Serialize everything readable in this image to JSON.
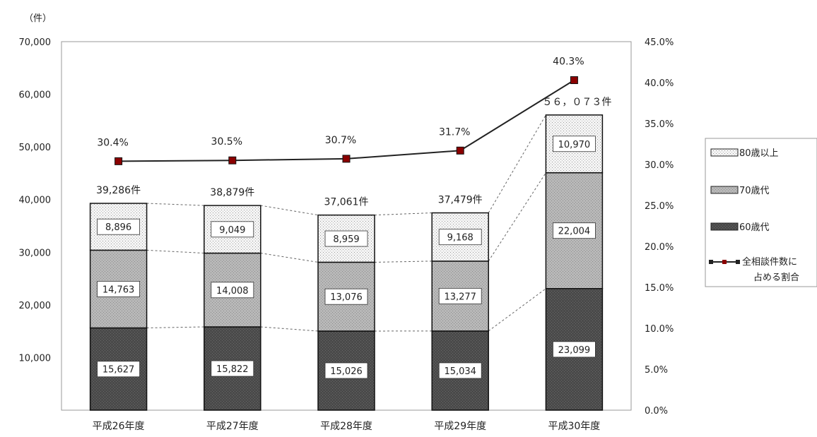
{
  "chart_data": {
    "type": "bar",
    "stacked": true,
    "unit_label": "（件）",
    "categories": [
      "平成26年度",
      "平成27年度",
      "平成28年度",
      "平成29年度",
      "平成30年度"
    ],
    "series": [
      {
        "name": "60歳代",
        "color": "#4a4a4a",
        "values": [
          15627,
          15822,
          15026,
          15034,
          23099
        ],
        "labels": [
          "15,627",
          "15,822",
          "15,026",
          "15,034",
          "23,099"
        ]
      },
      {
        "name": "70歳代",
        "color": "#b5b5b5",
        "values": [
          14763,
          14008,
          13076,
          13277,
          22004
        ],
        "labels": [
          "14,763",
          "14,008",
          "13,076",
          "13,277",
          "22,004"
        ]
      },
      {
        "name": "80歳以上",
        "color": "#ececec",
        "values": [
          8896,
          9049,
          8959,
          9168,
          10970
        ],
        "labels": [
          "8,896",
          "9,049",
          "8,959",
          "9,168",
          "10,970"
        ]
      }
    ],
    "totals": [
      "39,286件",
      "38,879件",
      "37,061件",
      "37,479件",
      "５６，０７３件"
    ],
    "line_series": {
      "name": "全相談件数に占める割合",
      "values": [
        30.4,
        30.5,
        30.7,
        31.7,
        40.3
      ],
      "labels": [
        "30.4%",
        "30.5%",
        "30.7%",
        "31.7%",
        "40.3%"
      ]
    },
    "y_left": {
      "ylim": [
        0,
        70000
      ],
      "ticks": [
        "10,000",
        "20,000",
        "30,000",
        "40,000",
        "50,000",
        "60,000",
        "70,000"
      ],
      "tick_values": [
        10000,
        20000,
        30000,
        40000,
        50000,
        60000,
        70000
      ]
    },
    "y_right": {
      "ylim": [
        0,
        45
      ],
      "ticks": [
        "0.0%",
        "5.0%",
        "10.0%",
        "15.0%",
        "20.0%",
        "25.0%",
        "30.0%",
        "35.0%",
        "40.0%",
        "45.0%"
      ],
      "tick_values": [
        0,
        5,
        10,
        15,
        20,
        25,
        30,
        35,
        40,
        45
      ]
    },
    "legend_position": "right",
    "grid": false,
    "colors": {
      "line": "#222222",
      "marker": "#8b0000",
      "axis": "#888888"
    }
  }
}
